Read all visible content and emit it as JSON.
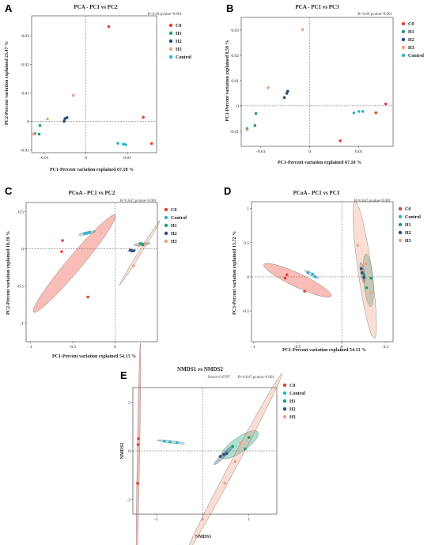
{
  "legend": {
    "C0": {
      "label": "C0",
      "color": "#e8432d"
    },
    "Control": {
      "label": "Control",
      "color": "#2ab5cc"
    },
    "H1": {
      "label": "H1",
      "color": "#1aa07a"
    },
    "H2": {
      "label": "H2",
      "color": "#2a4a80"
    },
    "H3": {
      "label": "H3",
      "color": "#f0a080"
    }
  },
  "chart_data": [
    {
      "panel": "A",
      "type": "scatter",
      "title": "PCA - PC1 vs PC2",
      "stat": "R=0.69,pvalue=0.001",
      "xlabel": "PC1-Percent variation explained 67.18 %",
      "ylabel": "PC2-Percent variation explained 23.47 %",
      "xlim": [
        -0.013,
        0.017
      ],
      "ylim": [
        -0.011,
        0.037
      ],
      "xticks": [
        -0.01,
        0,
        0.01
      ],
      "xtick_labels": [
        "-0.01",
        "0",
        "0.01"
      ],
      "yticks": [
        -0.01,
        0,
        0.01,
        0.02,
        0.03
      ],
      "ytick_labels": [
        "-0.01",
        "0",
        "0.01",
        "0.02",
        "0.03"
      ],
      "legend_order": [
        "C0",
        "H1",
        "H2",
        "H3",
        "Control"
      ],
      "series": [
        {
          "group": "C0",
          "points": [
            [
              0.0055,
              0.0332
            ],
            [
              0.0138,
              0.0014
            ],
            [
              0.0158,
              -0.0078
            ]
          ]
        },
        {
          "group": "H1",
          "points": [
            [
              -0.011,
              -0.0015
            ],
            [
              -0.0112,
              -0.0045
            ],
            [
              -0.0122,
              -0.0043
            ]
          ]
        },
        {
          "group": "H2",
          "points": [
            [
              -0.0045,
              0.0013
            ],
            [
              -0.005,
              0.0009
            ],
            [
              -0.0052,
              0.0
            ]
          ]
        },
        {
          "group": "H3",
          "points": [
            [
              -0.003,
              0.0091
            ],
            [
              -0.0092,
              0.0008
            ],
            [
              -0.0125,
              -0.0045
            ]
          ]
        },
        {
          "group": "Control",
          "points": [
            [
              0.0077,
              -0.0077
            ],
            [
              0.009,
              -0.008
            ],
            [
              0.0096,
              -0.0082
            ]
          ]
        }
      ]
    },
    {
      "panel": "B",
      "type": "scatter",
      "title": "PCA - PC1 vs PC3",
      "stat": "R=0.69,pvalue=0.001",
      "xlabel": "PC1-Percent variation explained 67.18 %",
      "ylabel": "PC3-Percent variation explained 8.59 %",
      "xlim": [
        -0.014,
        0.017
      ],
      "ylim": [
        -0.016,
        0.035
      ],
      "xticks": [
        -0.01,
        0,
        0.01
      ],
      "xtick_labels": [
        "-0.01",
        "0",
        "0.01"
      ],
      "yticks": [
        -0.01,
        0,
        0.01,
        0.02,
        0.03
      ],
      "ytick_labels": [
        "-0.01",
        "0",
        "0.01",
        "0.02",
        "0.03"
      ],
      "legend_order": [
        "C0",
        "H1",
        "H2",
        "H3",
        "Control"
      ],
      "series": [
        {
          "group": "C0",
          "points": [
            [
              0.0155,
              0.0008
            ],
            [
              0.0135,
              -0.0027
            ],
            [
              0.0062,
              -0.0138
            ]
          ]
        },
        {
          "group": "H1",
          "points": [
            [
              -0.011,
              -0.003
            ],
            [
              -0.0112,
              -0.0078
            ],
            [
              -0.0128,
              -0.009
            ]
          ]
        },
        {
          "group": "H2",
          "points": [
            [
              -0.0045,
              0.0058
            ],
            [
              -0.0047,
              0.005
            ],
            [
              -0.0052,
              0.0033
            ]
          ]
        },
        {
          "group": "H3",
          "points": [
            [
              -0.0015,
              0.0302
            ],
            [
              -0.0085,
              0.0072
            ],
            [
              -0.0128,
              -0.0095
            ]
          ]
        },
        {
          "group": "Control",
          "points": [
            [
              0.009,
              -0.0028
            ],
            [
              0.01,
              -0.0022
            ],
            [
              0.0108,
              -0.0022
            ]
          ]
        }
      ]
    },
    {
      "panel": "C",
      "type": "scatter",
      "title": "PCoA - PC1 vs PC2",
      "stat": "R=0.647,pvalue=0.001",
      "xlabel": "PC1-Percent variation explained 54.13 %",
      "ylabel": "PC2-Percent variation explained 18.39 %",
      "xlim": [
        -1.05,
        0.5
      ],
      "ylim": [
        -1.25,
        0.62
      ],
      "xticks": [
        -1,
        -0.5,
        0
      ],
      "xtick_labels": [
        "-1",
        "-0.5",
        "0"
      ],
      "yticks": [
        -1,
        -0.5,
        0,
        0.5
      ],
      "ytick_labels": [
        "-1",
        "-0.5",
        "0",
        "0.5"
      ],
      "legend_order": [
        "C0",
        "Control",
        "H1",
        "H2",
        "H3"
      ],
      "series": [
        {
          "group": "C0",
          "points": [
            [
              -0.62,
              0.11
            ],
            [
              -0.63,
              -0.04
            ],
            [
              -0.32,
              -0.65
            ]
          ]
        },
        {
          "group": "Control",
          "points": [
            [
              -0.36,
              0.2
            ],
            [
              -0.33,
              0.21
            ],
            [
              -0.3,
              0.22
            ]
          ]
        },
        {
          "group": "H1",
          "points": [
            [
              0.3,
              0.07
            ],
            [
              0.32,
              0.06
            ],
            [
              0.33,
              0.05
            ]
          ]
        },
        {
          "group": "H2",
          "points": [
            [
              0.18,
              -0.02
            ],
            [
              0.2,
              -0.03
            ],
            [
              0.22,
              -0.03
            ]
          ]
        },
        {
          "group": "H3",
          "points": [
            [
              0.22,
              -0.23
            ],
            [
              0.28,
              0.04
            ],
            [
              0.36,
              0.06
            ]
          ]
        }
      ],
      "ellipses": [
        {
          "group": "C0",
          "cx": -0.48,
          "cy": -0.2,
          "a": 0.75,
          "b": 0.1,
          "angle_deg": 50
        },
        {
          "group": "Control",
          "cx": -0.33,
          "cy": 0.21,
          "a": 0.1,
          "b": 0.018,
          "angle_deg": 12
        },
        {
          "group": "H1",
          "cx": 0.32,
          "cy": 0.06,
          "a": 0.1,
          "b": 0.018,
          "angle_deg": 5
        },
        {
          "group": "H2",
          "cx": 0.2,
          "cy": -0.025,
          "a": 0.05,
          "b": 0.012,
          "angle_deg": 5
        },
        {
          "group": "H3",
          "cx": 0.29,
          "cy": -0.06,
          "a": 0.45,
          "b": 0.02,
          "angle_deg": 58
        }
      ]
    },
    {
      "panel": "D",
      "type": "scatter",
      "title": "PCoA - PC1 vs PC3",
      "stat": "R=0.647,pvalue=0.001",
      "xlabel": "PC1-Percent variation explained 54.13 %",
      "ylabel": "PC3-Percent variation explained 13.72 %",
      "xlim": [
        -1.02,
        0.58
      ],
      "ylim": [
        -0.95,
        1.1
      ],
      "xticks": [
        -1,
        -0.5,
        0,
        0.5
      ],
      "xtick_labels": [
        "-1",
        "-0.5",
        "0",
        "0.5"
      ],
      "yticks": [
        -0.5,
        0,
        0.5,
        1
      ],
      "ytick_labels": [
        "-0.5",
        "0",
        "0.5",
        "1"
      ],
      "legend_order": [
        "C0",
        "Control",
        "H1",
        "H2",
        "H3"
      ],
      "series": [
        {
          "group": "C0",
          "points": [
            [
              -0.62,
              0.03
            ],
            [
              -0.64,
              -0.02
            ],
            [
              -0.42,
              -0.21
            ]
          ]
        },
        {
          "group": "Control",
          "points": [
            [
              -0.38,
              0.06
            ],
            [
              -0.33,
              0.04
            ],
            [
              -0.3,
              0.0
            ]
          ]
        },
        {
          "group": "H1",
          "points": [
            [
              0.33,
              -0.02
            ],
            [
              0.28,
              -0.16
            ],
            [
              0.25,
              0.03
            ]
          ]
        },
        {
          "group": "H2",
          "points": [
            [
              0.22,
              0.12
            ],
            [
              0.23,
              0.06
            ],
            [
              0.25,
              -0.01
            ]
          ]
        },
        {
          "group": "H3",
          "points": [
            [
              0.18,
              0.46
            ],
            [
              0.27,
              0.19
            ],
            [
              0.33,
              -0.23
            ]
          ]
        }
      ],
      "ellipses": [
        {
          "group": "C0",
          "cx": -0.5,
          "cy": -0.05,
          "a": 0.42,
          "b": 0.1,
          "angle_deg": -25
        },
        {
          "group": "Control",
          "cx": -0.34,
          "cy": 0.035,
          "a": 0.09,
          "b": 0.02,
          "angle_deg": -30
        },
        {
          "group": "H1",
          "cx": 0.3,
          "cy": -0.05,
          "a": 0.3,
          "b": 0.07,
          "angle_deg": -85
        },
        {
          "group": "H2",
          "cx": 0.235,
          "cy": 0.06,
          "a": 0.12,
          "b": 0.03,
          "angle_deg": -80
        },
        {
          "group": "H3",
          "cx": 0.26,
          "cy": 0.1,
          "a": 0.78,
          "b": 0.1,
          "angle_deg": -82
        }
      ]
    },
    {
      "panel": "E",
      "type": "scatter",
      "title": "NMDS1 vs NMDS2",
      "stress": "Stress=0.0707",
      "stat": "R=0.647,pvalue=0.001",
      "xlabel": "NMDS1",
      "ylabel": "NMDS2",
      "xlim": [
        -1.5,
        1.6
      ],
      "ylim": [
        -2.6,
        2.6
      ],
      "xticks": [
        -1,
        0,
        1
      ],
      "xtick_labels": [
        "-1",
        "0",
        "1"
      ],
      "yticks": [
        -2,
        0,
        2
      ],
      "ytick_labels": [
        "-2",
        "0",
        "2"
      ],
      "legend_order": [
        "C0",
        "Control",
        "H1",
        "H2",
        "H3"
      ],
      "series": [
        {
          "group": "C0",
          "points": [
            [
              -1.38,
              0.5
            ],
            [
              -1.39,
              0.26
            ],
            [
              -1.4,
              -1.33
            ]
          ]
        },
        {
          "group": "Control",
          "points": [
            [
              -0.82,
              0.4
            ],
            [
              -0.7,
              0.37
            ],
            [
              -0.55,
              0.34
            ]
          ]
        },
        {
          "group": "H1",
          "points": [
            [
              0.65,
              0.18
            ],
            [
              0.92,
              0.08
            ],
            [
              1.0,
              0.55
            ]
          ]
        },
        {
          "group": "H2",
          "points": [
            [
              0.38,
              -0.23
            ],
            [
              0.46,
              -0.15
            ],
            [
              0.52,
              -0.1
            ]
          ]
        },
        {
          "group": "H3",
          "points": [
            [
              0.48,
              -1.33
            ],
            [
              0.7,
              -0.44
            ],
            [
              0.82,
              0.33
            ]
          ]
        }
      ],
      "ellipses": [
        {
          "group": "C0",
          "cx": -1.38,
          "cy": -0.15,
          "a": 2.4,
          "b": 0.05,
          "angle_deg": 89
        },
        {
          "group": "Control",
          "cx": -0.68,
          "cy": 0.37,
          "a": 0.3,
          "b": 0.05,
          "angle_deg": -7
        },
        {
          "group": "H1",
          "cx": 0.8,
          "cy": 0.25,
          "a": 0.48,
          "b": 0.3,
          "angle_deg": 35
        },
        {
          "group": "H2",
          "cx": 0.46,
          "cy": -0.17,
          "a": 0.3,
          "b": 0.08,
          "angle_deg": 45
        },
        {
          "group": "H3",
          "cx": 0.68,
          "cy": -0.52,
          "a": 2.2,
          "b": 0.15,
          "angle_deg": 62
        }
      ]
    }
  ]
}
